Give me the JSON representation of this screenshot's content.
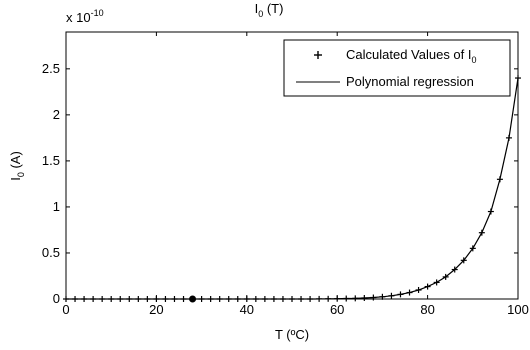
{
  "chart_data": {
    "type": "line",
    "title": "I",
    "title_sub": "0",
    "title_suffix": " (T)",
    "xlabel": "T (ºC)",
    "ylabel": "I",
    "ylabel_sub": "0",
    "ylabel_suffix": " (A)",
    "y_multiplier": "x 10",
    "y_multiplier_exp": "-10",
    "xlim": [
      0,
      100
    ],
    "ylim": [
      0,
      2.9
    ],
    "x_ticks": [
      0,
      20,
      40,
      60,
      80,
      100
    ],
    "y_ticks": [
      0,
      0.5,
      1,
      1.5,
      2,
      2.5
    ],
    "x_tick_labels": [
      "0",
      "20",
      "40",
      "60",
      "80",
      "100"
    ],
    "y_tick_labels": [
      "0",
      "0.5",
      "1",
      "1.5",
      "2",
      "2.5"
    ],
    "grid": false,
    "legend_position": "top-right",
    "legend": [
      {
        "label": "Calculated Values of I",
        "label_sub": "0",
        "marker": "plus"
      },
      {
        "label": "Polynomial regression",
        "marker": "line"
      }
    ],
    "series": [
      {
        "name": "Calculated Values of I0",
        "marker": "plus",
        "x": [
          0,
          2,
          4,
          6,
          8,
          10,
          12,
          14,
          16,
          18,
          20,
          22,
          24,
          26,
          28,
          30,
          32,
          34,
          36,
          38,
          40,
          42,
          44,
          46,
          48,
          50,
          52,
          54,
          56,
          58,
          60,
          62,
          64,
          66,
          68,
          70,
          72,
          74,
          76,
          78,
          80,
          82,
          84,
          86,
          88,
          90,
          92,
          94,
          96,
          98,
          100
        ],
        "y": [
          0,
          0,
          0,
          0,
          0,
          0,
          0,
          0,
          0,
          0,
          0,
          0,
          0,
          0,
          0,
          0,
          0,
          0,
          0,
          0,
          0,
          0,
          0,
          0,
          0,
          0,
          0,
          0,
          0.001,
          0.002,
          0.003,
          0.005,
          0.007,
          0.011,
          0.016,
          0.024,
          0.035,
          0.05,
          0.07,
          0.098,
          0.135,
          0.18,
          0.24,
          0.32,
          0.42,
          0.55,
          0.72,
          0.95,
          1.3,
          1.75,
          2.4
        ]
      },
      {
        "name": "Polynomial regression",
        "marker": "line",
        "x": [
          0,
          5,
          10,
          15,
          20,
          25,
          30,
          35,
          40,
          45,
          50,
          55,
          58,
          60,
          62,
          64,
          66,
          68,
          70,
          72,
          74,
          76,
          78,
          80,
          82,
          84,
          86,
          88,
          90,
          92,
          94,
          96,
          98,
          100
        ],
        "y": [
          0,
          0,
          0,
          0,
          0,
          0,
          0,
          0,
          0,
          0,
          0,
          0.0005,
          0.002,
          0.003,
          0.005,
          0.007,
          0.011,
          0.016,
          0.024,
          0.035,
          0.05,
          0.07,
          0.098,
          0.135,
          0.18,
          0.24,
          0.32,
          0.42,
          0.55,
          0.72,
          0.95,
          1.3,
          1.75,
          2.4
        ]
      }
    ],
    "highlight_point": {
      "x": 28,
      "y": 0
    }
  }
}
